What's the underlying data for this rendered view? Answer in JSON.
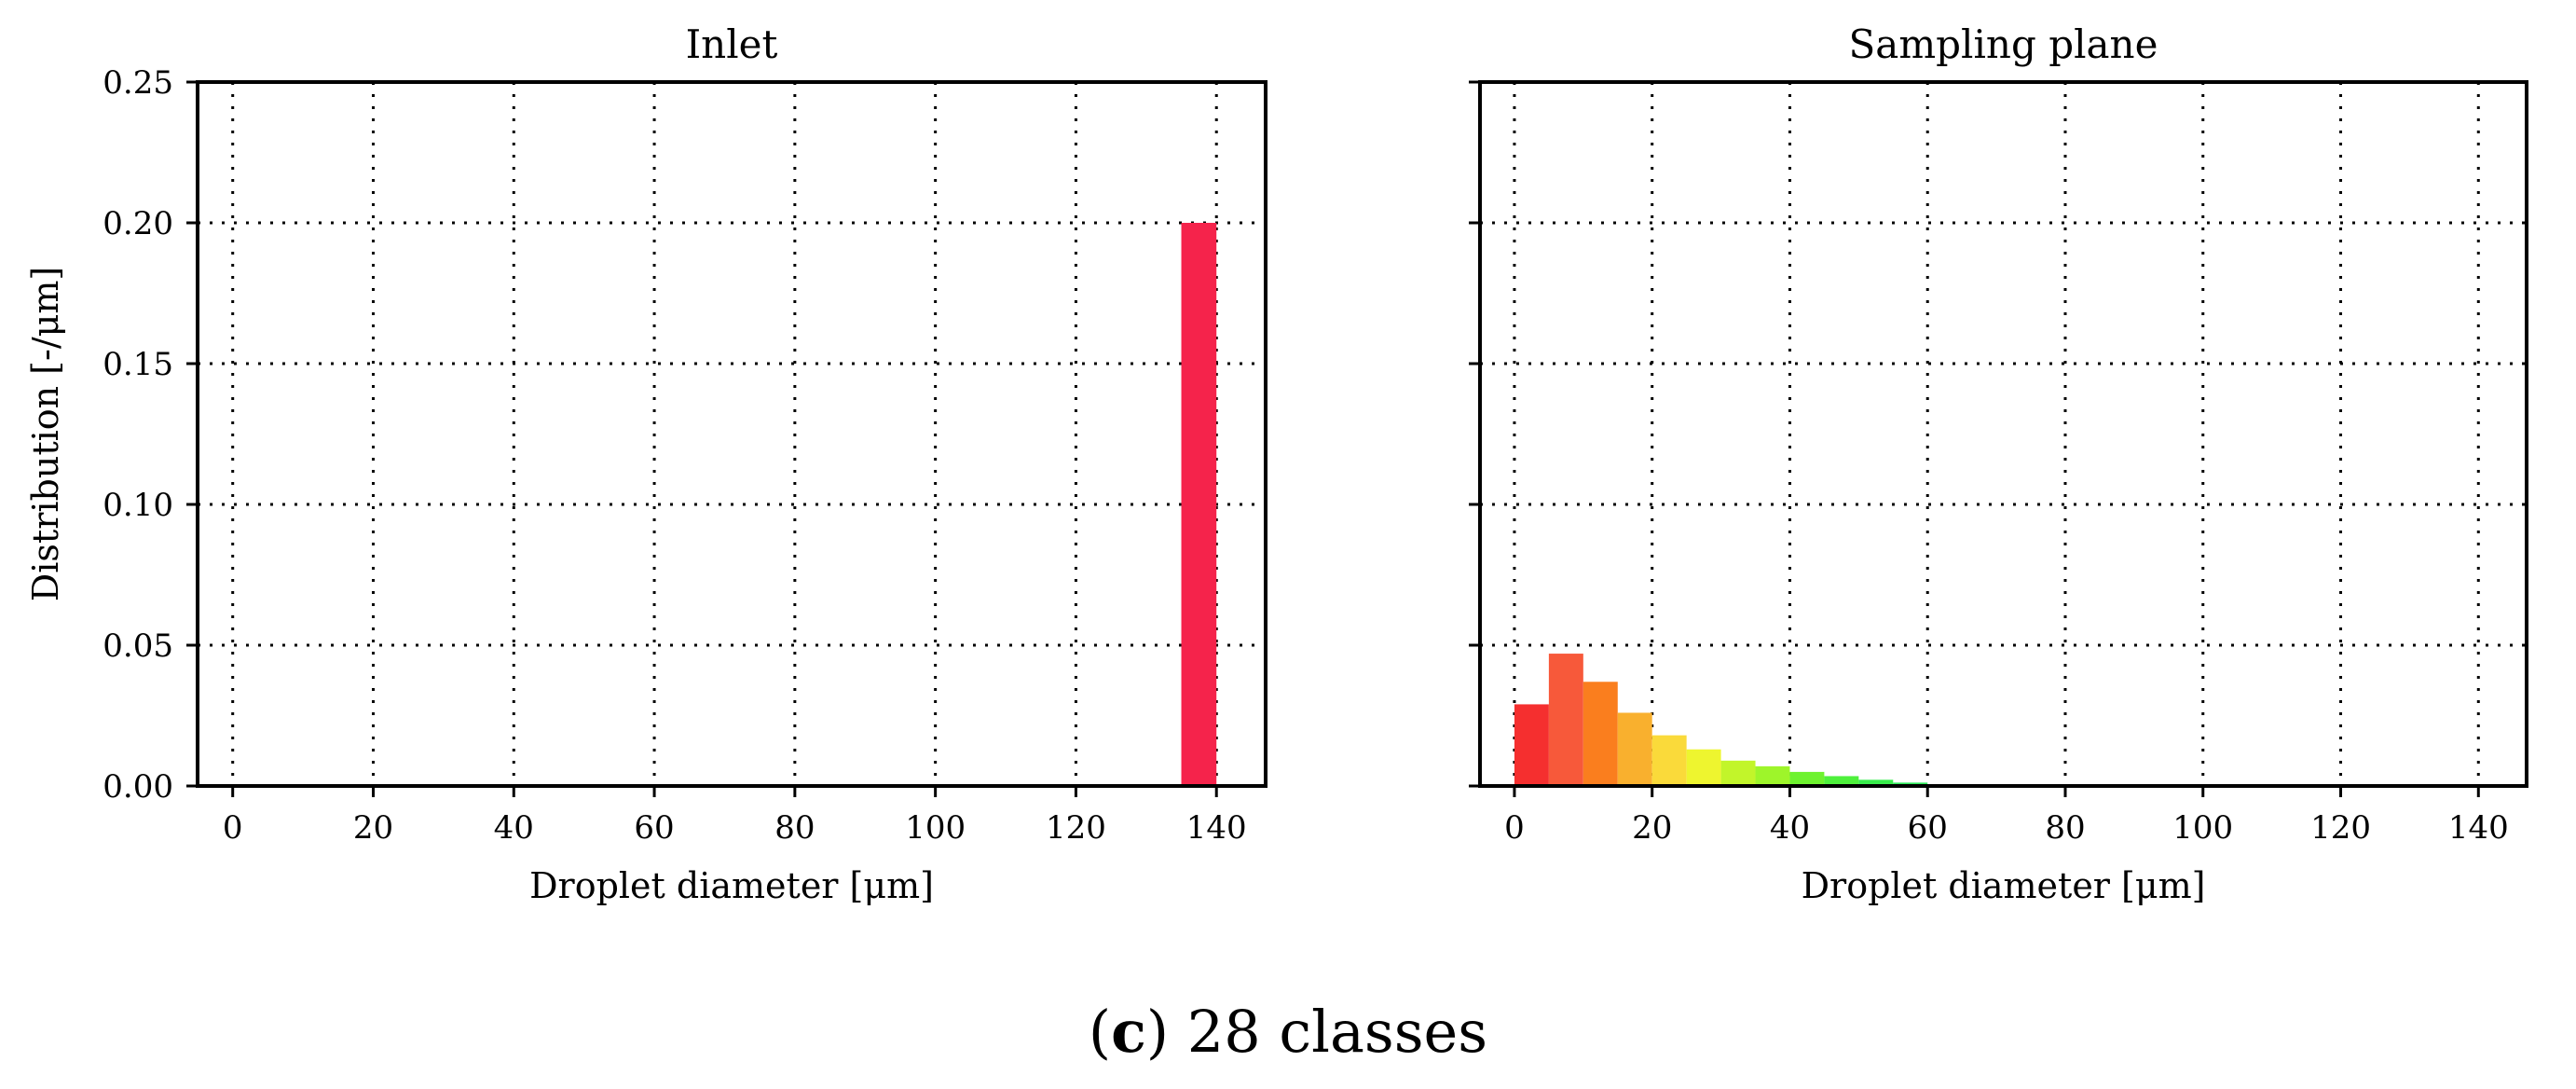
{
  "caption": {
    "label": "c",
    "text": "28 classes"
  },
  "chart_data": [
    {
      "type": "bar",
      "title": "Inlet",
      "xlabel": "Droplet diameter [μm]",
      "ylabel": "Distribution [-/μm]",
      "xlim": [
        -5,
        147
      ],
      "ylim": [
        0,
        0.25
      ],
      "xticks": [
        0,
        20,
        40,
        60,
        80,
        100,
        120,
        140
      ],
      "yticks": [
        "0.00",
        "0.05",
        "0.10",
        "0.15",
        "0.20",
        "0.25"
      ],
      "grid": true,
      "bin_width": 5,
      "bars": [
        {
          "x": 137.5,
          "value": 0.2,
          "color": "#f5234b"
        }
      ]
    },
    {
      "type": "bar",
      "title": "Sampling plane",
      "xlabel": "Droplet diameter [μm]",
      "ylabel": "",
      "xlim": [
        -5,
        147
      ],
      "ylim": [
        0,
        0.25
      ],
      "xticks": [
        0,
        20,
        40,
        60,
        80,
        100,
        120,
        140
      ],
      "yticks": [],
      "grid": true,
      "bin_width": 5,
      "bars": [
        {
          "x": 2.5,
          "value": 0.029,
          "color": "#f52f2f"
        },
        {
          "x": 7.5,
          "value": 0.047,
          "color": "#f7593a"
        },
        {
          "x": 12.5,
          "value": 0.037,
          "color": "#fa7e1e"
        },
        {
          "x": 17.5,
          "value": 0.026,
          "color": "#f9b02e"
        },
        {
          "x": 22.5,
          "value": 0.018,
          "color": "#fada3a"
        },
        {
          "x": 27.5,
          "value": 0.013,
          "color": "#eef52f"
        },
        {
          "x": 32.5,
          "value": 0.009,
          "color": "#c2f52a"
        },
        {
          "x": 37.5,
          "value": 0.007,
          "color": "#9ef52a"
        },
        {
          "x": 42.5,
          "value": 0.005,
          "color": "#6ef22f"
        },
        {
          "x": 47.5,
          "value": 0.0035,
          "color": "#4ef03c"
        },
        {
          "x": 52.5,
          "value": 0.0022,
          "color": "#38ec4c"
        },
        {
          "x": 57.5,
          "value": 0.0012,
          "color": "#2ee85a"
        },
        {
          "x": 62.5,
          "value": 0.0005,
          "color": "#2fe27a"
        }
      ]
    }
  ]
}
